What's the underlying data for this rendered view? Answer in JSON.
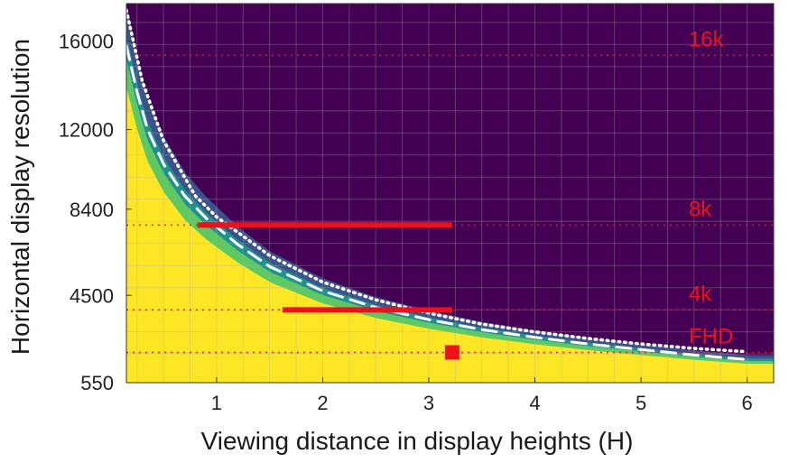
{
  "chart_data": {
    "type": "heatmap",
    "xlabel": "Viewing distance in display heights (H)",
    "ylabel": "Horizontal display resolution",
    "xlim": [
      0.15,
      6.25
    ],
    "ylim": [
      550,
      17700
    ],
    "x_ticks": [
      1,
      2,
      3,
      4,
      5,
      6
    ],
    "y_ticks": [
      550,
      4500,
      8400,
      12000,
      16000
    ],
    "y_tick_labels": [
      "550",
      "4500",
      "8400",
      "12000",
      "16000"
    ],
    "grid": true,
    "colormap": [
      "#440154",
      "#3b528b",
      "#21918c",
      "#5ec962",
      "#fde725"
    ],
    "resolution_lines": [
      {
        "label": "16k",
        "value": 15360
      },
      {
        "label": "8k",
        "value": 7680
      },
      {
        "label": "4k",
        "value": 3840
      },
      {
        "label": "FHD",
        "value": 1920
      }
    ],
    "threshold_curves": [
      {
        "style": "dashed",
        "color": "#ffffff",
        "x": [
          0.15,
          0.25,
          0.35,
          0.5,
          0.7,
          0.9,
          1.0,
          1.2,
          1.5,
          2.0,
          2.5,
          3.0,
          3.5,
          4.0,
          4.5,
          5.0,
          5.5,
          6.0
        ],
        "y": [
          15800,
          13700,
          12000,
          10450,
          9000,
          8000,
          7600,
          6800,
          5800,
          4700,
          3950,
          3400,
          2950,
          2600,
          2300,
          2050,
          1800,
          1600
        ]
      },
      {
        "style": "dotted",
        "color": "#ffffff",
        "x": [
          0.15,
          0.3,
          0.5,
          0.8,
          1.0,
          1.3,
          1.5,
          2.0,
          2.5,
          3.0,
          3.5,
          4.0,
          4.5,
          5.0,
          5.5,
          6.0
        ],
        "y": [
          17400,
          14200,
          11500,
          9000,
          8050,
          7000,
          6300,
          5100,
          4300,
          3700,
          3200,
          2850,
          2550,
          2300,
          2100,
          1950
        ]
      }
    ],
    "highlight_segments": [
      {
        "resolution": "8k",
        "y": 7680,
        "x": [
          0.82,
          3.22
        ]
      },
      {
        "resolution": "4k",
        "y": 3840,
        "x": [
          1.62,
          3.22
        ]
      }
    ],
    "highlight_points": [
      {
        "resolution": "FHD",
        "x": 3.22,
        "y": 1920
      }
    ],
    "accent_color": "#f0101a"
  }
}
